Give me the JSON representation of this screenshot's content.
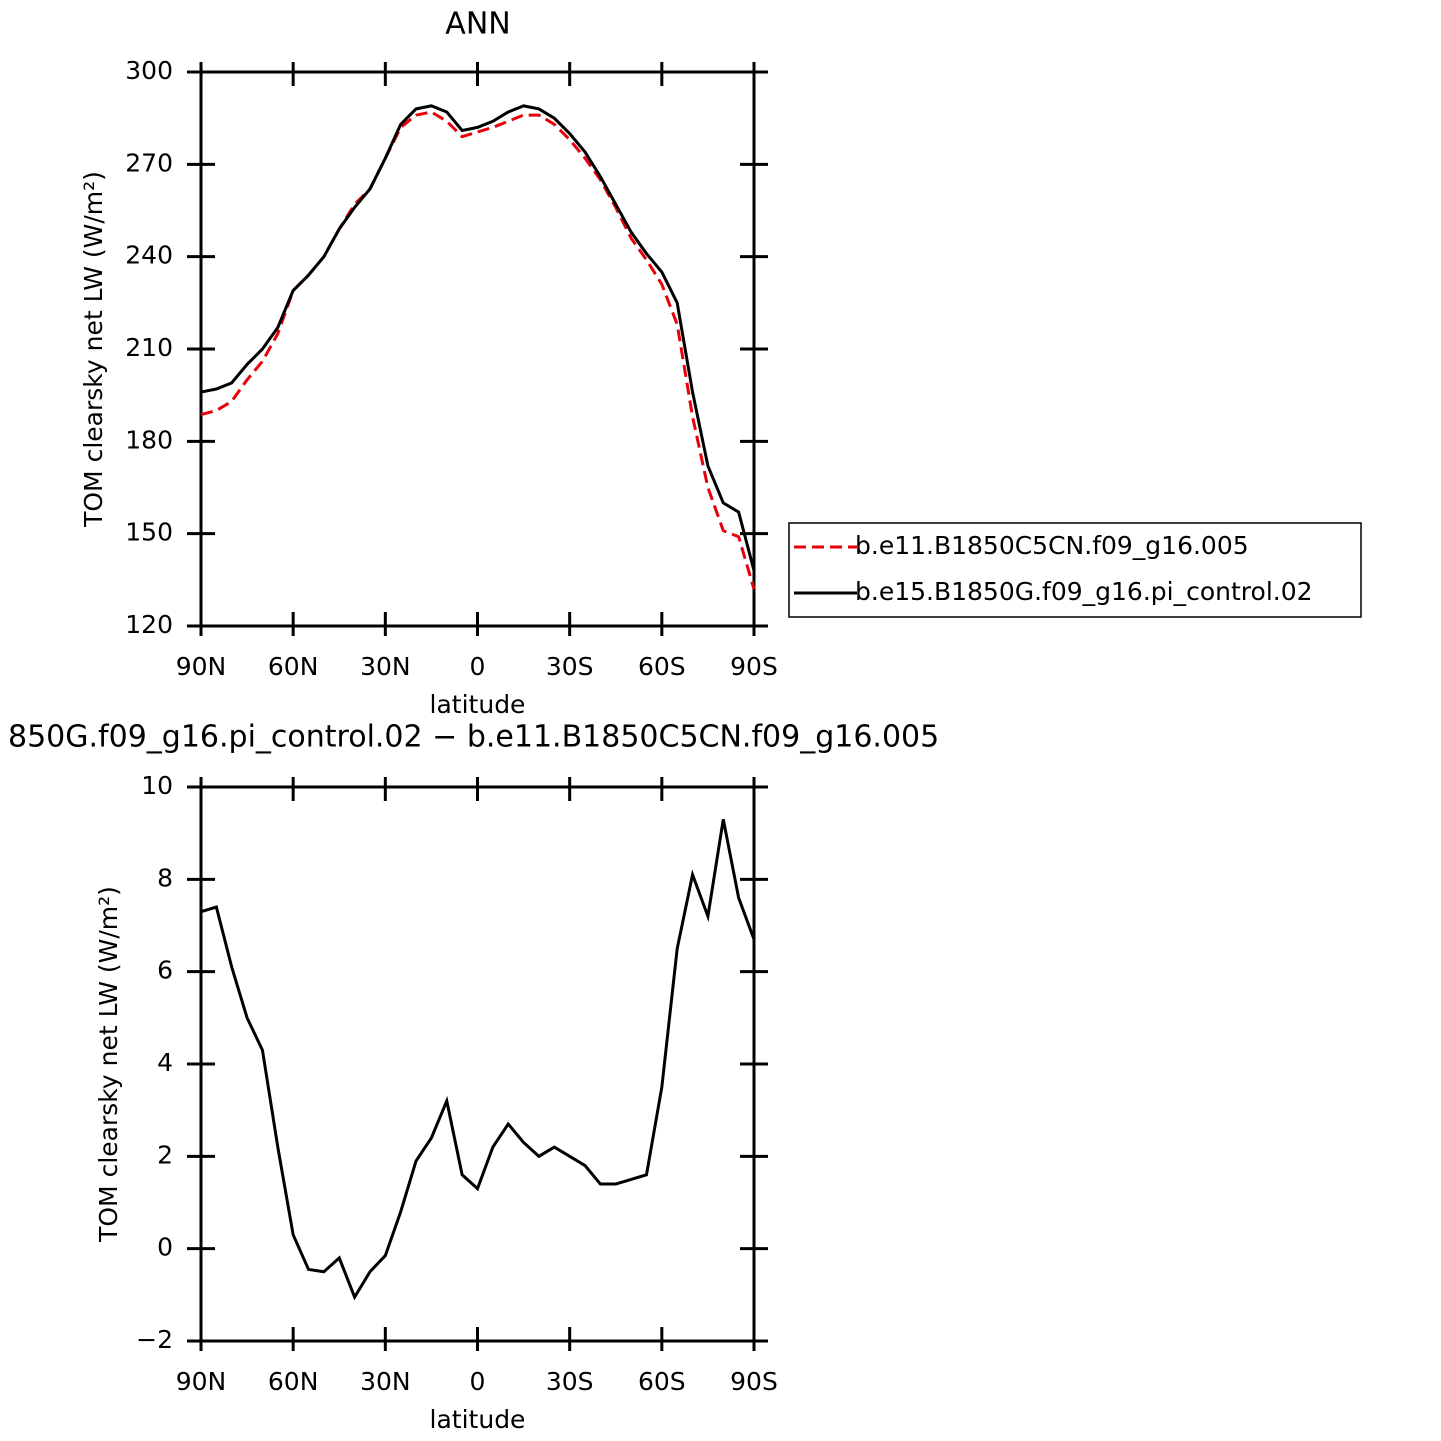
{
  "chart_data": [
    {
      "type": "line",
      "title": "ANN",
      "xlabel": "latitude",
      "ylabel": "TOM clearsky net LW (W/m²)",
      "x": [
        90,
        85,
        80,
        75,
        70,
        65,
        60,
        55,
        50,
        45,
        40,
        35,
        30,
        25,
        20,
        15,
        10,
        5,
        0,
        -5,
        -10,
        -15,
        -20,
        -25,
        -30,
        -35,
        -40,
        -45,
        -50,
        -55,
        -60,
        -65,
        -70,
        -75,
        -80,
        -85,
        -90
      ],
      "xlim": [
        90,
        -90
      ],
      "xticks": [
        {
          "value": 90,
          "label": "90N"
        },
        {
          "value": 60,
          "label": "60N"
        },
        {
          "value": 30,
          "label": "30N"
        },
        0,
        {
          "value": -30,
          "label": "30S"
        },
        {
          "value": -60,
          "label": "60S"
        },
        {
          "value": -90,
          "label": "90S"
        }
      ],
      "ylim": [
        120,
        300
      ],
      "yticks": [
        120,
        150,
        180,
        210,
        240,
        270,
        300
      ],
      "legend": "right",
      "series": [
        {
          "name": "b.e11.B1850C5CN.f09_g16.005",
          "color": "#e8000b",
          "linestyle": "dashed",
          "values": [
            188.7,
            190,
            193,
            200,
            206,
            215,
            229,
            234,
            240,
            249,
            257,
            262,
            272,
            282,
            286,
            287,
            284,
            279,
            280.5,
            282,
            284,
            286,
            286,
            283,
            278,
            272,
            265,
            256,
            246,
            239,
            231,
            218,
            188,
            165,
            151,
            149,
            132
          ]
        },
        {
          "name": "b.e15.B1850G.f09_g16.pi_control.02",
          "color": "#000000",
          "linestyle": "solid",
          "values": [
            196,
            197,
            199,
            205,
            210,
            217,
            229,
            234,
            240,
            249,
            256,
            262,
            272,
            283,
            288,
            289,
            287,
            281,
            282,
            284,
            287,
            289,
            288,
            285,
            280,
            274,
            266,
            257,
            248,
            241,
            235,
            225,
            196,
            172,
            160,
            157,
            138
          ]
        }
      ]
    },
    {
      "type": "line",
      "title": "850G.f09_g16.pi_control.02 − b.e11.B1850C5CN.f09_g16.005",
      "xlabel": "latitude",
      "ylabel": "TOM clearsky net LW (W/m²)",
      "x": [
        90,
        85,
        80,
        75,
        70,
        65,
        60,
        55,
        50,
        45,
        40,
        35,
        30,
        25,
        20,
        15,
        10,
        5,
        0,
        -5,
        -10,
        -15,
        -20,
        -25,
        -30,
        -35,
        -40,
        -45,
        -50,
        -55,
        -60,
        -65,
        -70,
        -75,
        -80,
        -85,
        -90
      ],
      "xlim": [
        90,
        -90
      ],
      "xticks": [
        {
          "value": 90,
          "label": "90N"
        },
        {
          "value": 60,
          "label": "60N"
        },
        {
          "value": 30,
          "label": "30N"
        },
        0,
        {
          "value": -30,
          "label": "30S"
        },
        {
          "value": -60,
          "label": "60S"
        },
        {
          "value": -90,
          "label": "90S"
        }
      ],
      "ylim": [
        -2,
        10
      ],
      "yticks": [
        {
          "value": -2,
          "label": "−2"
        },
        0,
        2,
        4,
        6,
        8,
        10
      ],
      "series": [
        {
          "color": "#000000",
          "linestyle": "solid",
          "values": [
            7.3,
            7.4,
            6.1,
            5.0,
            4.3,
            2.2,
            0.3,
            -0.45,
            -0.5,
            -0.2,
            -1.05,
            -0.5,
            -0.15,
            0.8,
            1.9,
            2.4,
            3.2,
            1.6,
            1.3,
            2.2,
            2.7,
            2.3,
            2.0,
            2.2,
            2.0,
            1.8,
            1.4,
            1.4,
            1.5,
            1.6,
            3.5,
            6.5,
            8.1,
            7.2,
            9.3,
            7.6,
            6.7
          ]
        }
      ]
    }
  ]
}
